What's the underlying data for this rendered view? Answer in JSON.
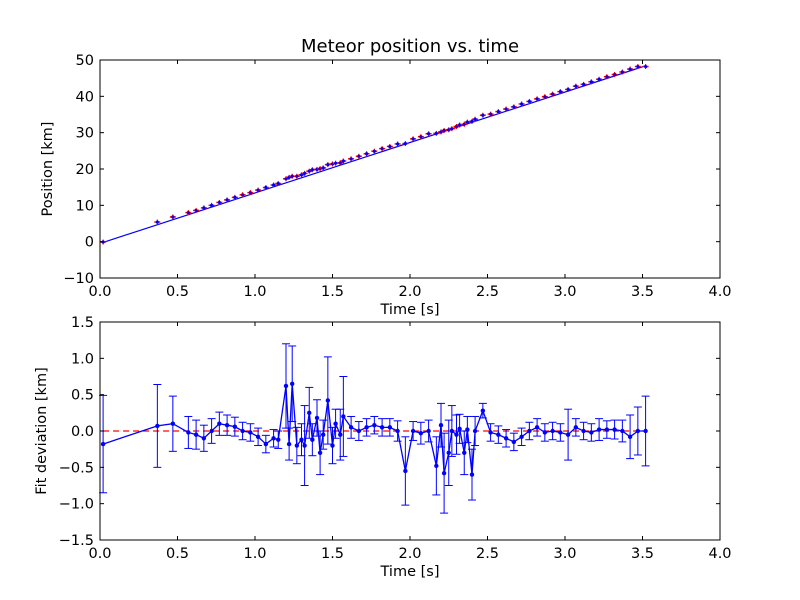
{
  "chart_data": [
    {
      "type": "line",
      "title": "Meteor position vs. time",
      "xlabel": "Time [s]",
      "ylabel": "Position [km]",
      "xlim": [
        0.0,
        4.0
      ],
      "ylim": [
        -10,
        50
      ],
      "xticks": [
        "0.0",
        "0.5",
        "1.0",
        "1.5",
        "2.0",
        "2.5",
        "3.0",
        "3.5",
        "4.0"
      ],
      "yticks": [
        "−10",
        "0",
        "10",
        "20",
        "30",
        "40",
        "50"
      ],
      "grid": false,
      "colors": {
        "fit_line": "#0000ff",
        "errorbar": "#ff0000"
      },
      "fit": {
        "x": [
          0.02,
          3.52
        ],
        "y": [
          -0.2,
          48.4
        ]
      },
      "series": [
        {
          "x": [
            0.02,
            0.37,
            0.47,
            0.57,
            0.62,
            0.67,
            0.72,
            0.77,
            0.82,
            0.87,
            0.92,
            0.97,
            1.02,
            1.07,
            1.12,
            1.15,
            1.2,
            1.22,
            1.24,
            1.27,
            1.3,
            1.32,
            1.35,
            1.37,
            1.4,
            1.42,
            1.44,
            1.47,
            1.5,
            1.52,
            1.55,
            1.57,
            1.62,
            1.67,
            1.72,
            1.77,
            1.82,
            1.87,
            1.92,
            1.97,
            2.02,
            2.07,
            2.12,
            2.17,
            2.2,
            2.22,
            2.25,
            2.27,
            2.3,
            2.32,
            2.35,
            2.37,
            2.4,
            2.42,
            2.47,
            2.52,
            2.57,
            2.62,
            2.67,
            2.72,
            2.77,
            2.82,
            2.87,
            2.92,
            2.97,
            3.02,
            3.07,
            3.12,
            3.17,
            3.22,
            3.27,
            3.32,
            3.37,
            3.42,
            3.47,
            3.52
          ],
          "y": [
            -0.1,
            5.4,
            6.8,
            8.0,
            8.6,
            9.3,
            10.0,
            10.8,
            11.5,
            12.2,
            12.9,
            13.5,
            14.2,
            14.9,
            15.6,
            16.0,
            17.3,
            17.7,
            18.0,
            18.0,
            18.4,
            18.8,
            19.4,
            19.8,
            19.9,
            20.1,
            20.3,
            21.2,
            21.4,
            21.6,
            21.7,
            22.2,
            22.8,
            23.5,
            24.2,
            24.9,
            25.6,
            26.2,
            26.9,
            27.0,
            28.3,
            28.9,
            29.7,
            29.8,
            30.2,
            30.6,
            30.8,
            31.1,
            31.7,
            32.1,
            32.3,
            32.9,
            33.1,
            33.7,
            34.8,
            35.1,
            35.8,
            36.5,
            37.1,
            37.9,
            38.6,
            39.3,
            39.9,
            40.6,
            41.3,
            41.9,
            42.8,
            43.3,
            44.0,
            44.7,
            45.4,
            46.0,
            46.7,
            47.5,
            48.2,
            48.2
          ]
        }
      ]
    },
    {
      "type": "line",
      "title": "",
      "xlabel": "Time [s]",
      "ylabel": "Fit deviation [km]",
      "xlim": [
        0.0,
        4.0
      ],
      "ylim": [
        -1.5,
        1.5
      ],
      "xticks": [
        "0.0",
        "0.5",
        "1.0",
        "1.5",
        "2.0",
        "2.5",
        "3.0",
        "3.5",
        "4.0"
      ],
      "yticks": [
        "−1.5",
        "−1.0",
        "−0.5",
        "0.0",
        "0.5",
        "1.0",
        "1.5"
      ],
      "grid": false,
      "colors": {
        "series": "#0000ff",
        "reference": "#ff0000"
      },
      "reference_line": 0.0,
      "series": [
        {
          "x": [
            0.02,
            0.37,
            0.47,
            0.57,
            0.62,
            0.67,
            0.72,
            0.77,
            0.82,
            0.87,
            0.92,
            0.97,
            1.02,
            1.07,
            1.12,
            1.15,
            1.2,
            1.22,
            1.24,
            1.27,
            1.3,
            1.32,
            1.35,
            1.37,
            1.4,
            1.42,
            1.44,
            1.47,
            1.5,
            1.52,
            1.55,
            1.57,
            1.62,
            1.67,
            1.72,
            1.77,
            1.82,
            1.87,
            1.92,
            1.97,
            2.02,
            2.07,
            2.12,
            2.17,
            2.2,
            2.22,
            2.25,
            2.27,
            2.3,
            2.32,
            2.35,
            2.37,
            2.4,
            2.42,
            2.47,
            2.52,
            2.57,
            2.62,
            2.67,
            2.72,
            2.77,
            2.82,
            2.87,
            2.92,
            2.97,
            3.02,
            3.07,
            3.12,
            3.17,
            3.22,
            3.27,
            3.32,
            3.37,
            3.42,
            3.47,
            3.52
          ],
          "y": [
            -0.18,
            0.07,
            0.1,
            -0.02,
            -0.05,
            -0.1,
            0.0,
            0.1,
            0.08,
            0.06,
            0.0,
            -0.02,
            -0.08,
            -0.18,
            -0.1,
            -0.12,
            0.62,
            -0.18,
            0.65,
            -0.2,
            -0.12,
            -0.2,
            0.25,
            -0.12,
            0.18,
            -0.3,
            -0.05,
            0.42,
            -0.2,
            0.1,
            -0.05,
            0.2,
            0.05,
            0.0,
            0.05,
            0.08,
            0.05,
            0.05,
            0.0,
            -0.55,
            0.0,
            -0.03,
            0.0,
            -0.48,
            0.08,
            -0.58,
            -0.3,
            0.0,
            -0.05,
            0.03,
            -0.3,
            0.02,
            -0.6,
            0.0,
            0.28,
            -0.02,
            -0.05,
            -0.1,
            -0.15,
            -0.08,
            0.0,
            0.05,
            -0.02,
            0.0,
            -0.02,
            -0.05,
            0.05,
            0.0,
            -0.02,
            0.02,
            0.02,
            0.02,
            0.0,
            -0.08,
            0.0,
            0.0
          ],
          "err": [
            0.67,
            0.57,
            0.38,
            0.22,
            0.2,
            0.18,
            0.17,
            0.16,
            0.14,
            0.13,
            0.12,
            0.12,
            0.12,
            0.12,
            0.12,
            0.12,
            0.58,
            0.22,
            0.52,
            0.25,
            0.22,
            0.55,
            0.35,
            0.22,
            0.25,
            0.3,
            0.2,
            0.6,
            0.25,
            0.2,
            0.35,
            0.55,
            0.15,
            0.13,
            0.12,
            0.12,
            0.12,
            0.12,
            0.14,
            0.47,
            0.13,
            0.15,
            0.15,
            0.4,
            0.3,
            0.55,
            0.45,
            0.35,
            0.27,
            0.2,
            0.3,
            0.18,
            0.35,
            0.2,
            0.1,
            0.12,
            0.12,
            0.12,
            0.12,
            0.12,
            0.12,
            0.12,
            0.12,
            0.12,
            0.12,
            0.35,
            0.12,
            0.12,
            0.12,
            0.15,
            0.12,
            0.13,
            0.15,
            0.3,
            0.33,
            0.48
          ]
        }
      ]
    }
  ]
}
